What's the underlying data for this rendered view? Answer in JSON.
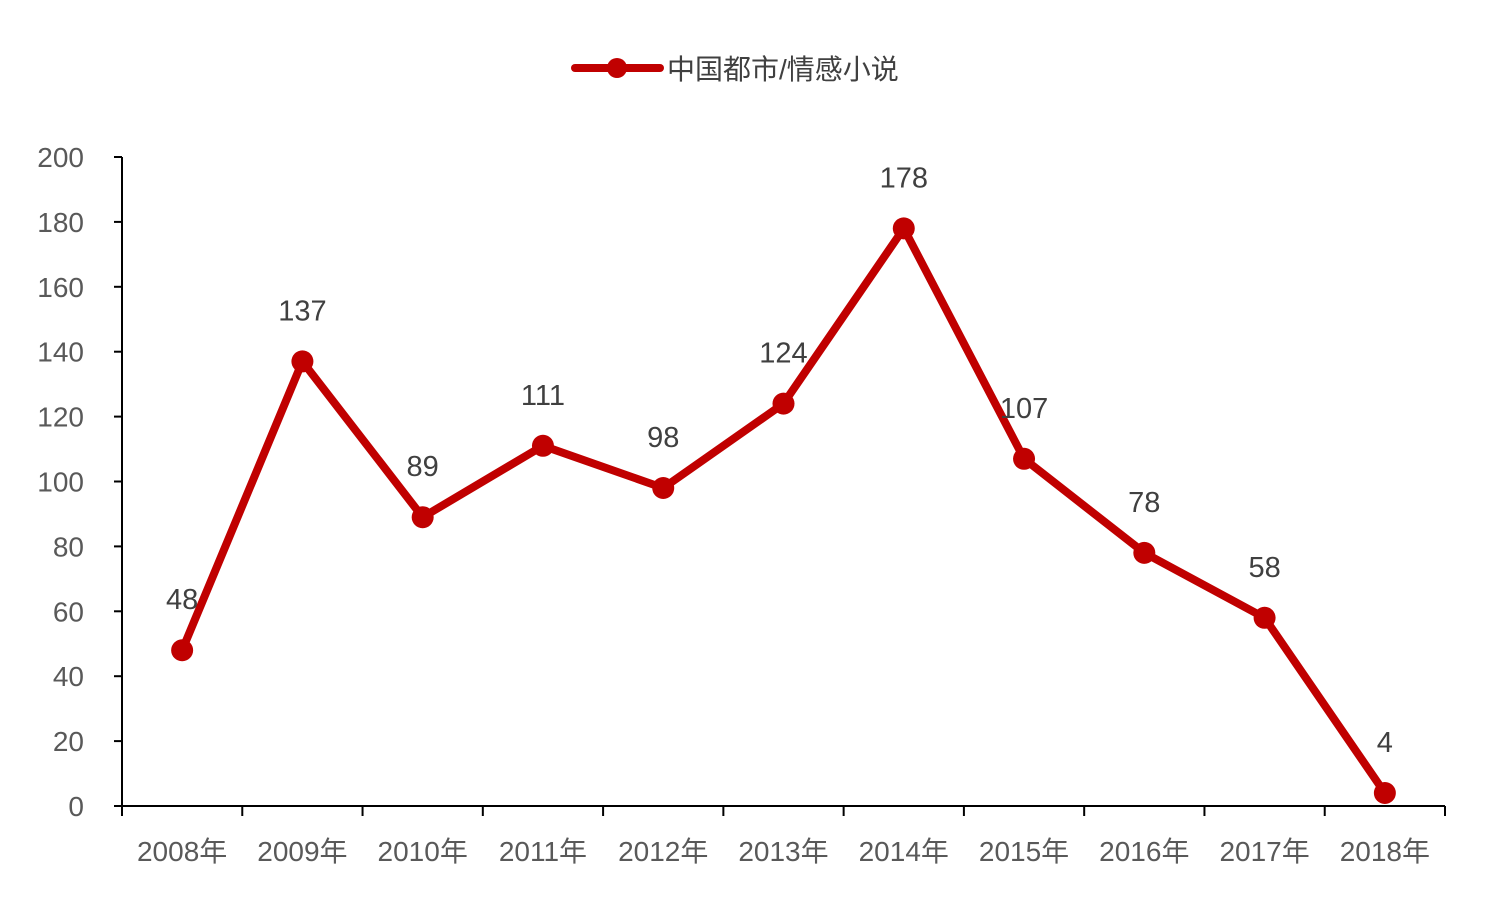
{
  "chart_data": {
    "type": "line",
    "categories": [
      "2008年",
      "2009年",
      "2010年",
      "2011年",
      "2012年",
      "2013年",
      "2014年",
      "2015年",
      "2016年",
      "2017年",
      "2018年"
    ],
    "series": [
      {
        "name": "中国都市/情感小说",
        "values": [
          48,
          137,
          89,
          111,
          98,
          124,
          178,
          107,
          78,
          58,
          4
        ],
        "color": "#C00000"
      }
    ],
    "ylim": [
      0,
      200
    ],
    "yticks": [
      0,
      20,
      40,
      60,
      80,
      100,
      120,
      140,
      160,
      180,
      200
    ],
    "legend_position": "top-center",
    "grid": false,
    "data_labels": true
  }
}
